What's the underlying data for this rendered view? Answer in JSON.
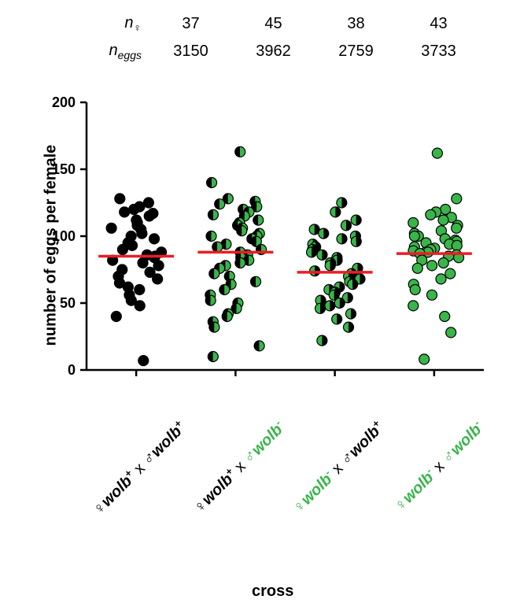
{
  "chart": {
    "type": "scatter-strip",
    "background_color": "#ffffff",
    "axis_line_color": "#000000",
    "axis_line_width": 2.5,
    "mean_line_color": "#ed1c24",
    "mean_line_width": 3.5,
    "marker_radius": 6.5,
    "marker_stroke": "#000000",
    "marker_stroke_width": 1.2,
    "ylabel": "number of eggs per female",
    "ylabel_fontsize": 20,
    "xlabel": "cross",
    "xlabel_fontsize": 20,
    "ylim": [
      0,
      200
    ],
    "ytick_step": 50,
    "yticks": [
      0,
      50,
      100,
      150,
      200
    ],
    "header_rows": [
      {
        "label_html": "n<sub>♀</sub>",
        "values": [
          "37",
          "45",
          "38",
          "43"
        ]
      },
      {
        "label_html": "n<sub>eggs</sub>",
        "values": [
          "3150",
          "3962",
          "2759",
          "3733"
        ]
      }
    ],
    "groups": [
      {
        "key": "pp",
        "fill": "solid-black",
        "mean": 85,
        "xlabel_parts": [
          {
            "t": "♀",
            "c": "#000000",
            "w": "normal",
            "i": false
          },
          {
            "t": "wolb",
            "c": "#000000",
            "w": "bold",
            "i": true
          },
          {
            "t": "+",
            "c": "#000000",
            "w": "bold",
            "i": false,
            "sup": true
          },
          {
            "t": " x ",
            "c": "#000000",
            "w": "normal",
            "i": false
          },
          {
            "t": "♂",
            "c": "#000000",
            "w": "normal",
            "i": false
          },
          {
            "t": "wolb",
            "c": "#000000",
            "w": "bold",
            "i": true
          },
          {
            "t": "+",
            "c": "#000000",
            "w": "bold",
            "i": false,
            "sup": true
          }
        ],
        "points": [
          128,
          125,
          122,
          120,
          118,
          117,
          115,
          112,
          110,
          108,
          106,
          105,
          102,
          100,
          98,
          95,
          93,
          90,
          88,
          86,
          85,
          84,
          82,
          80,
          78,
          75,
          73,
          70,
          68,
          65,
          62,
          60,
          56,
          52,
          48,
          40,
          7
        ]
      },
      {
        "key": "pm",
        "fill": "half-black-green",
        "mean": 88,
        "xlabel_parts": [
          {
            "t": "♀",
            "c": "#000000",
            "w": "normal",
            "i": false
          },
          {
            "t": "wolb",
            "c": "#000000",
            "w": "bold",
            "i": true
          },
          {
            "t": "+",
            "c": "#000000",
            "w": "bold",
            "i": false,
            "sup": true
          },
          {
            "t": " x ",
            "c": "#000000",
            "w": "normal",
            "i": false
          },
          {
            "t": "♂",
            "c": "#39b54a",
            "w": "normal",
            "i": false
          },
          {
            "t": "wolb",
            "c": "#39b54a",
            "w": "bold",
            "i": true
          },
          {
            "t": "-",
            "c": "#39b54a",
            "w": "bold",
            "i": false,
            "sup": true
          }
        ],
        "points": [
          163,
          140,
          128,
          126,
          124,
          122,
          120,
          118,
          116,
          115,
          112,
          110,
          108,
          106,
          104,
          102,
          100,
          100,
          98,
          96,
          94,
          92,
          90,
          88,
          86,
          84,
          82,
          80,
          78,
          76,
          72,
          70,
          66,
          64,
          60,
          56,
          52,
          50,
          46,
          42,
          40,
          36,
          32,
          18,
          10
        ]
      },
      {
        "key": "mp",
        "fill": "half-green-black",
        "mean": 73,
        "xlabel_parts": [
          {
            "t": "♀",
            "c": "#39b54a",
            "w": "normal",
            "i": false
          },
          {
            "t": "wolb",
            "c": "#39b54a",
            "w": "bold",
            "i": true
          },
          {
            "t": "-",
            "c": "#39b54a",
            "w": "bold",
            "i": false,
            "sup": true
          },
          {
            "t": " x ",
            "c": "#000000",
            "w": "normal",
            "i": false
          },
          {
            "t": "♂",
            "c": "#000000",
            "w": "normal",
            "i": false
          },
          {
            "t": "wolb",
            "c": "#000000",
            "w": "bold",
            "i": true
          },
          {
            "t": "+",
            "c": "#000000",
            "w": "bold",
            "i": false,
            "sup": true
          }
        ],
        "points": [
          125,
          118,
          112,
          108,
          105,
          102,
          100,
          98,
          96,
          94,
          92,
          90,
          88,
          86,
          84,
          82,
          80,
          78,
          76,
          74,
          72,
          70,
          68,
          66,
          64,
          62,
          60,
          58,
          56,
          54,
          52,
          50,
          48,
          46,
          42,
          38,
          32,
          22
        ]
      },
      {
        "key": "mm",
        "fill": "solid-green",
        "mean": 87,
        "xlabel_parts": [
          {
            "t": "♀",
            "c": "#39b54a",
            "w": "normal",
            "i": false
          },
          {
            "t": "wolb",
            "c": "#39b54a",
            "w": "bold",
            "i": true
          },
          {
            "t": "-",
            "c": "#39b54a",
            "w": "bold",
            "i": false,
            "sup": true
          },
          {
            "t": " x ",
            "c": "#000000",
            "w": "normal",
            "i": false
          },
          {
            "t": "♂",
            "c": "#39b54a",
            "w": "normal",
            "i": false
          },
          {
            "t": "wolb",
            "c": "#39b54a",
            "w": "bold",
            "i": true
          },
          {
            "t": "-",
            "c": "#39b54a",
            "w": "bold",
            "i": false,
            "sup": true
          }
        ],
        "points": [
          162,
          128,
          120,
          118,
          116,
          114,
          112,
          110,
          108,
          106,
          104,
          102,
          100,
          100,
          98,
          97,
          96,
          95,
          94,
          93,
          92,
          91,
          90,
          89,
          88,
          88,
          87,
          86,
          85,
          84,
          82,
          80,
          78,
          76,
          72,
          68,
          64,
          60,
          56,
          48,
          40,
          28,
          8
        ]
      }
    ],
    "colors": {
      "black": "#000000",
      "green": "#39b54a",
      "red": "#ed1c24"
    }
  }
}
